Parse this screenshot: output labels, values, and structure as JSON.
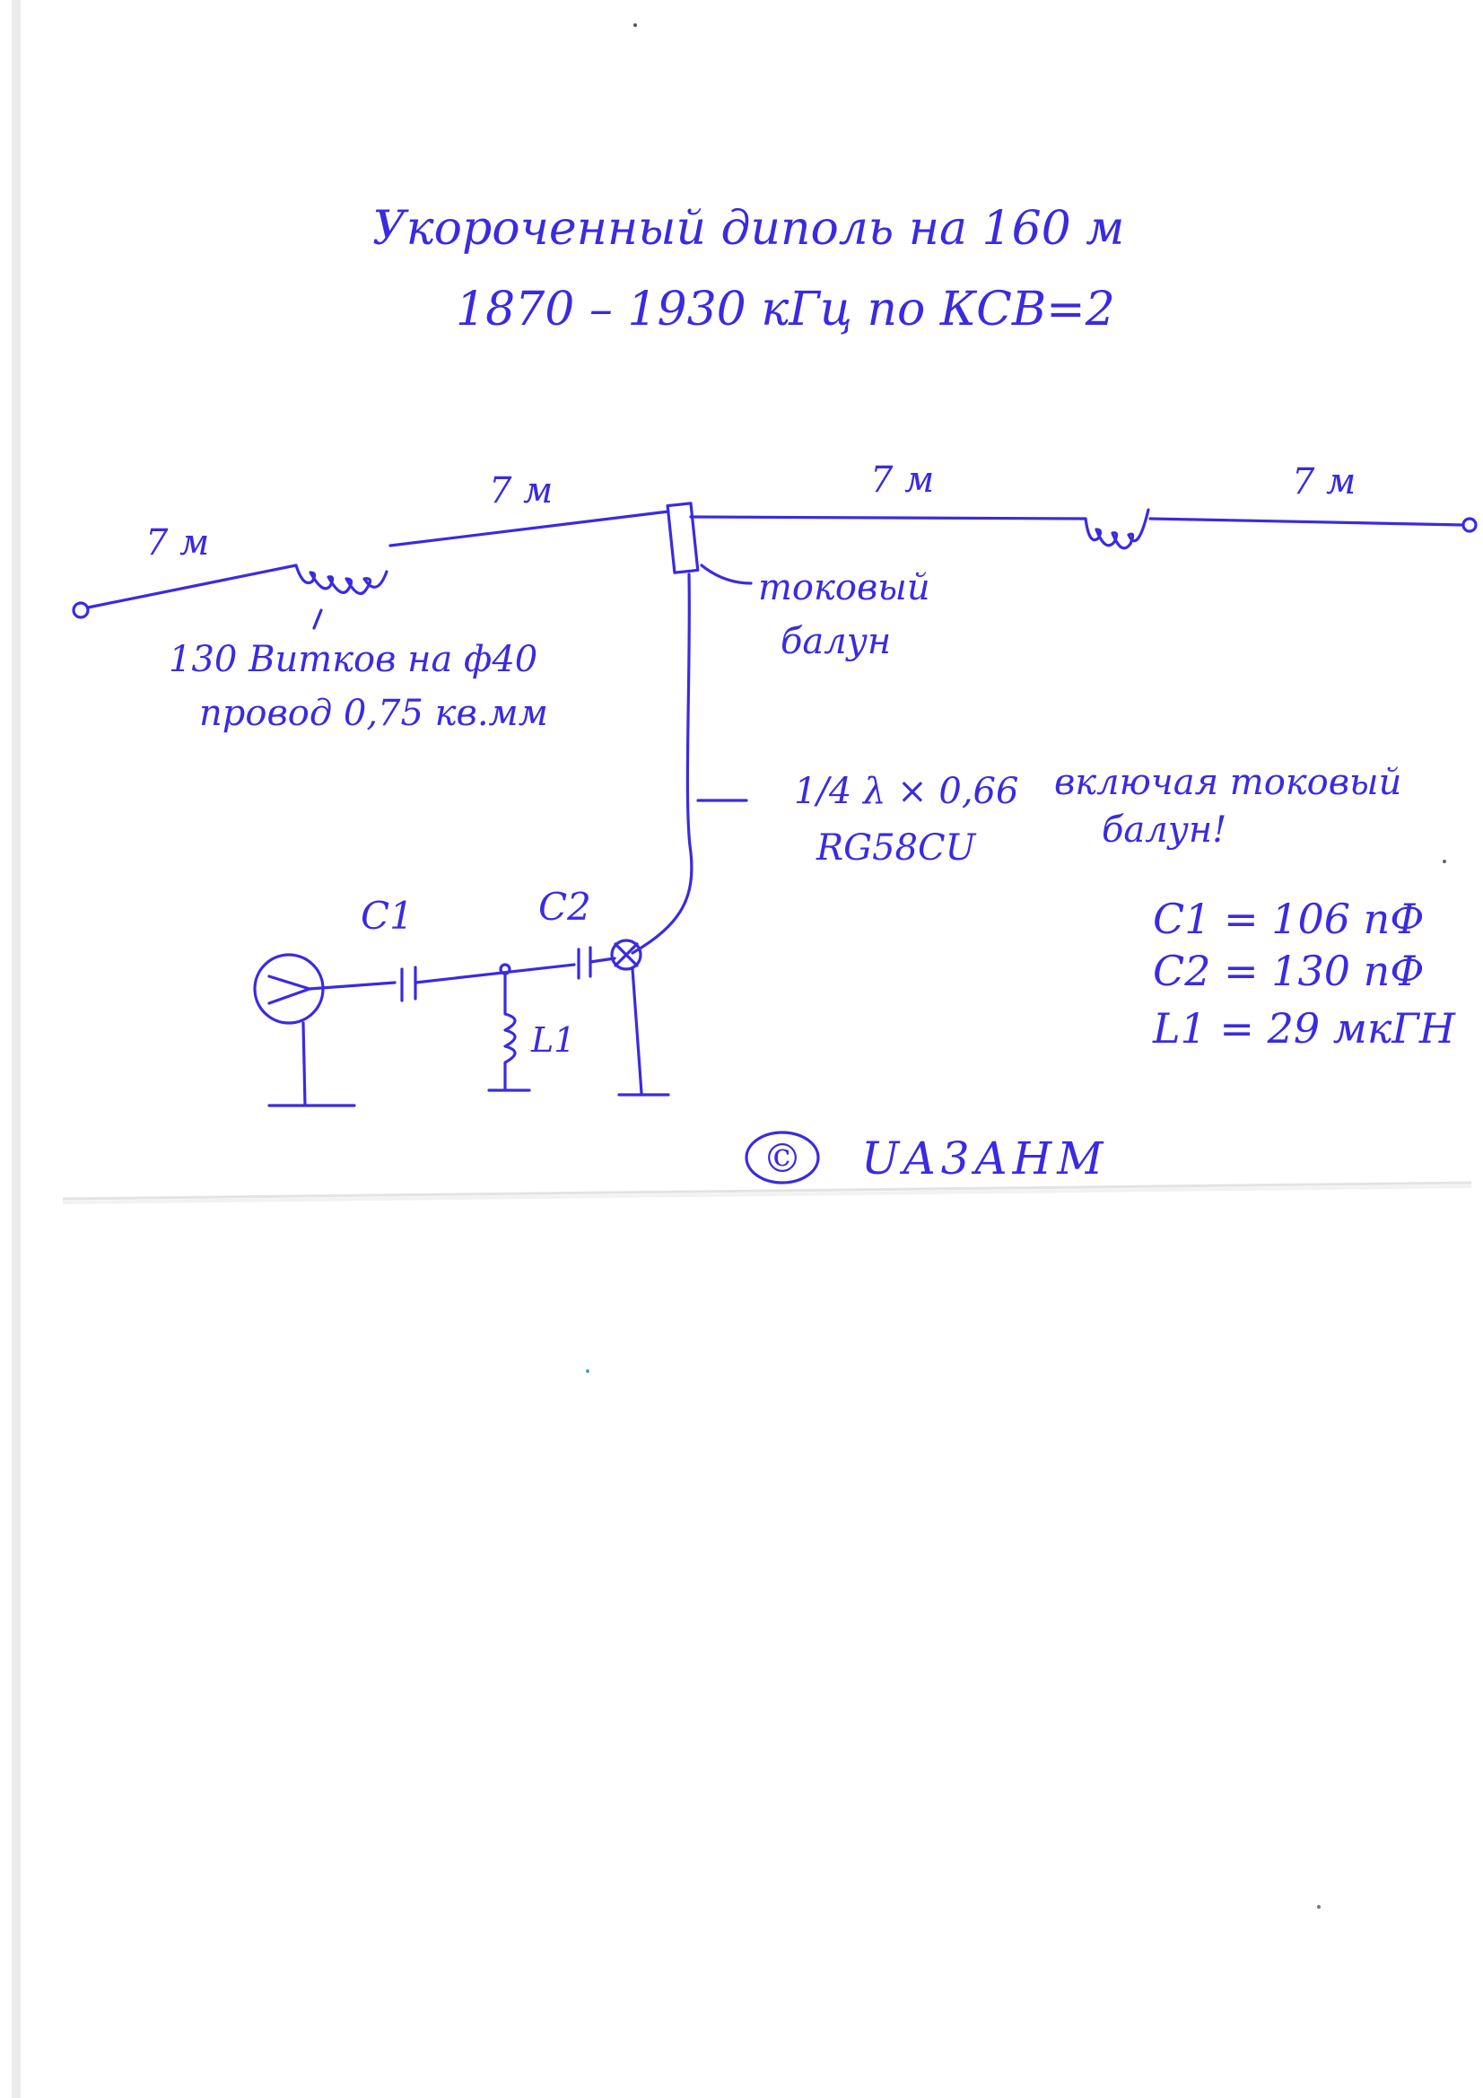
{
  "title": {
    "line1": "Укороченный диполь на 160 м",
    "line2": "1870 – 1930 кГц по КСВ=2"
  },
  "segments": {
    "left_outer": "7 м",
    "left_inner": "7 м",
    "right_inner": "7 м",
    "right_outer": "7 м"
  },
  "coil_note": {
    "line1": "130 Витков на ф40",
    "line2": "провод 0,75 кв.мм"
  },
  "balun_label": {
    "line1": "токовый",
    "line2": "балун"
  },
  "feeder_label": {
    "line1": "1/4 λ × 0,66",
    "line2": "RG58CU"
  },
  "balun_note": {
    "line1": "включая токовый",
    "line2": "балун!"
  },
  "components": {
    "c1": "C1",
    "c2": "C2",
    "l1": "L1"
  },
  "values": {
    "c1": "C1 = 106 пФ",
    "c2": "C2 = 130 пФ",
    "l1": "L1 = 29 мкГН"
  },
  "copyright": {
    "symbol": "©",
    "callsign": "UA3AHM"
  },
  "colors": {
    "ink": "#3a2be0",
    "paper": "#ffffff",
    "edge": "#e6e6e6"
  }
}
